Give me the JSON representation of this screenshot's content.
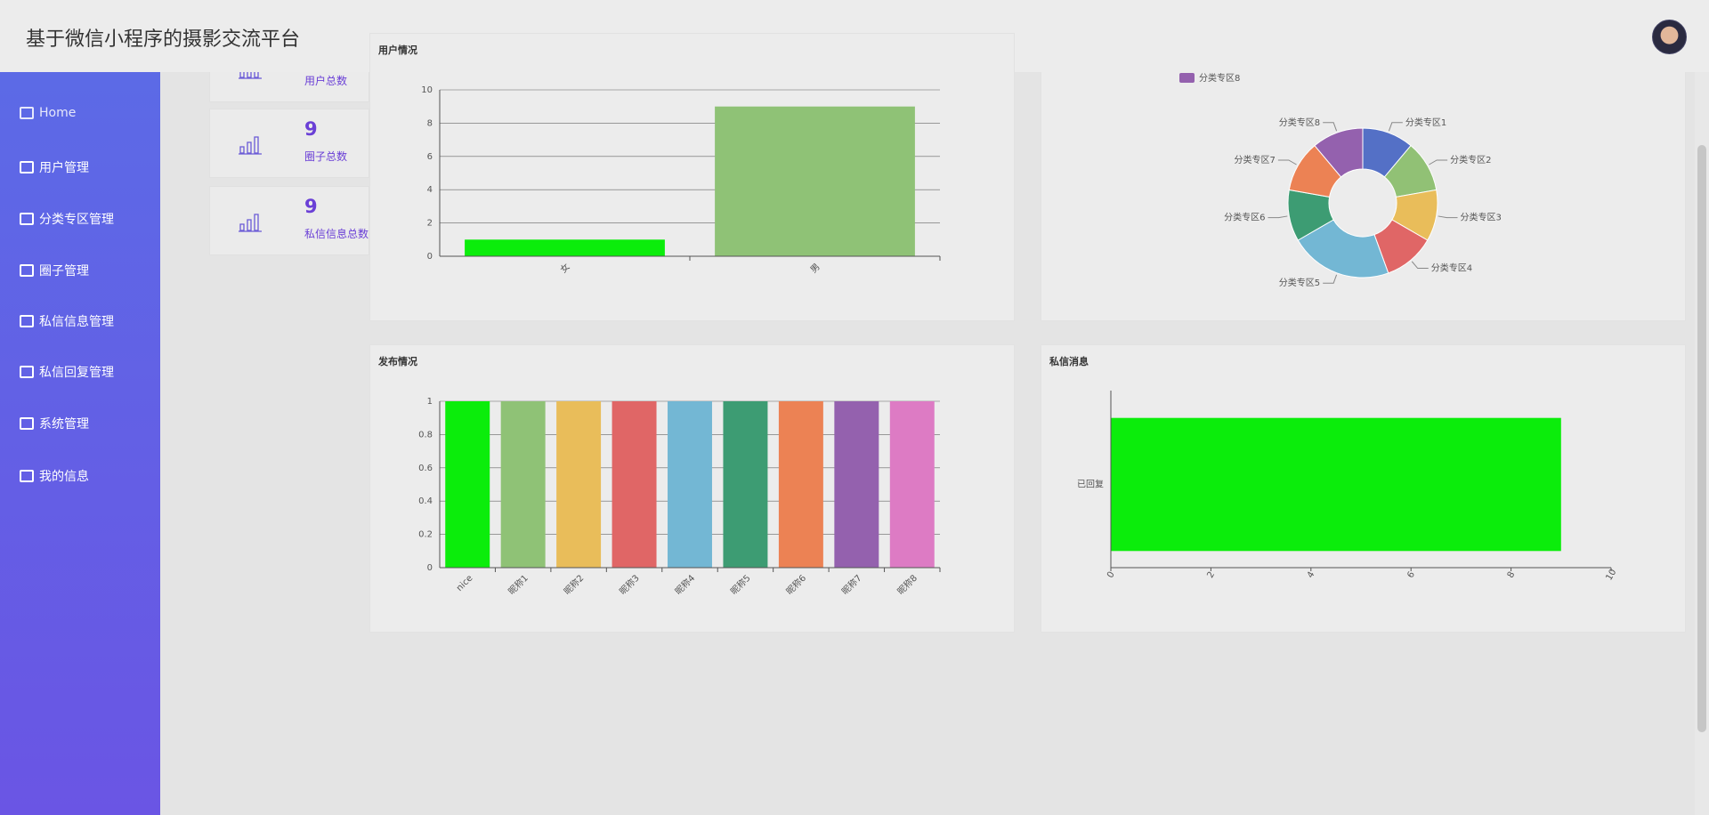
{
  "header": {
    "title": "基于微信小程序的摄影交流平台"
  },
  "menu": [
    "Home",
    "用户管理",
    "分类专区管理",
    "圈子管理",
    "私信信息管理",
    "私信回复管理",
    "系统管理",
    "我的信息"
  ],
  "stats": [
    {
      "label": "用户总数"
    },
    {
      "value": 9,
      "label": "圈子总数"
    },
    {
      "value": 9,
      "label": "私信信息总数"
    }
  ],
  "chart_data": [
    {
      "type": "bar",
      "title": "用户情况",
      "categories": [
        "女",
        "男"
      ],
      "values": [
        1,
        9
      ],
      "colors": [
        "#0bed0b",
        "#8fc276"
      ],
      "ylim": [
        0,
        10
      ],
      "yticks": [
        0,
        2,
        4,
        6,
        8,
        10
      ],
      "grid": true
    },
    {
      "type": "pie",
      "categories": [
        "分类专区1",
        "分类专区2",
        "分类专区3",
        "分类专区4",
        "分类专区5",
        "分类专区6",
        "分类专区7",
        "分类专区8"
      ],
      "values": [
        1,
        1,
        1,
        1,
        2,
        1,
        1,
        1
      ],
      "colors": [
        "#5470c6",
        "#91c175",
        "#e9bd5a",
        "#e06666",
        "#73b7d4",
        "#3d9c73",
        "#ec8254",
        "#9461ae"
      ]
    },
    {
      "type": "bar",
      "title": "发布情况",
      "categories": [
        "nice",
        "昵称1",
        "昵称2",
        "昵称3",
        "昵称4",
        "昵称5",
        "昵称6",
        "昵称7",
        "昵称8"
      ],
      "values": [
        1,
        1,
        1,
        1,
        1,
        1,
        1,
        1,
        1
      ],
      "colors": [
        "#0bed0b",
        "#8fc276",
        "#e9bd5a",
        "#e06666",
        "#73b7d4",
        "#3d9c73",
        "#ec8254",
        "#9461ae",
        "#dd7bc4"
      ],
      "ylim": [
        0,
        1
      ],
      "yticks": [
        0,
        0.2,
        0.4,
        0.6,
        0.8,
        1
      ],
      "grid": true
    },
    {
      "type": "hbar",
      "title": "私信消息",
      "categories": [
        "已回复"
      ],
      "values": [
        9
      ],
      "colors": [
        "#0bed0b"
      ],
      "xlim": [
        0,
        10
      ],
      "xticks": [
        0,
        2,
        4,
        6,
        8,
        10
      ],
      "grid": false
    }
  ]
}
